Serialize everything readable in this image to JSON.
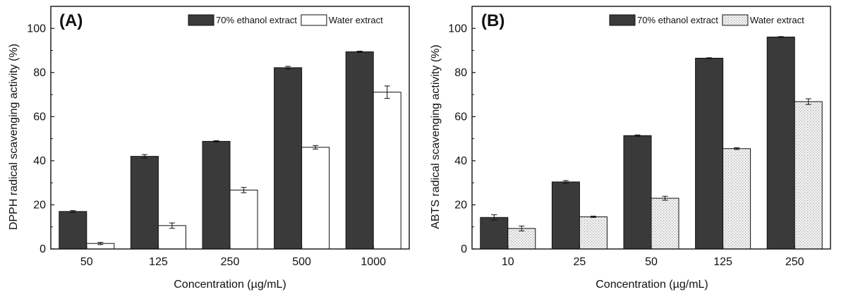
{
  "chart_data": [
    {
      "type": "bar",
      "panel_label": "(A)",
      "categories": [
        "50",
        "125",
        "250",
        "500",
        "1000"
      ],
      "xlabel": "Concentration (µg/mL)",
      "ylabel": "DPPH radical scavenging activity (%)",
      "ylim": [
        0,
        110
      ],
      "yticks": [
        0,
        20,
        40,
        60,
        80,
        100
      ],
      "grid": false,
      "legend_position": "top-right",
      "series": [
        {
          "name": "70% ethanol extract",
          "color": "#3a3a3a",
          "pattern": "solid",
          "values": [
            17.0,
            42.0,
            48.8,
            82.2,
            89.4
          ],
          "errors": [
            0.4,
            0.8,
            0.3,
            0.6,
            0.3
          ]
        },
        {
          "name": "Water extract",
          "color": "#ffffff",
          "pattern": "white",
          "values": [
            2.5,
            10.6,
            26.7,
            46.1,
            71.1
          ],
          "errors": [
            0.5,
            1.2,
            1.2,
            0.8,
            2.8
          ]
        }
      ]
    },
    {
      "type": "bar",
      "panel_label": "(B)",
      "categories": [
        "10",
        "25",
        "50",
        "125",
        "250"
      ],
      "xlabel": "Concentration (µg/mL)",
      "ylabel": "ABTS radical scavenging activity (%)",
      "ylim": [
        0,
        110
      ],
      "yticks": [
        0,
        20,
        40,
        60,
        80,
        100
      ],
      "grid": false,
      "legend_position": "top-right",
      "series": [
        {
          "name": "70% ethanol extract",
          "color": "#3a3a3a",
          "pattern": "solid",
          "values": [
            14.3,
            30.4,
            51.4,
            86.5,
            96.1
          ],
          "errors": [
            1.2,
            0.6,
            0.3,
            0.2,
            0.2
          ]
        },
        {
          "name": "Water extract",
          "color": "#e6e6e6",
          "pattern": "stipple",
          "values": [
            9.3,
            14.6,
            23.0,
            45.5,
            66.8
          ],
          "errors": [
            1.1,
            0.3,
            0.9,
            0.4,
            1.3
          ]
        }
      ]
    }
  ]
}
